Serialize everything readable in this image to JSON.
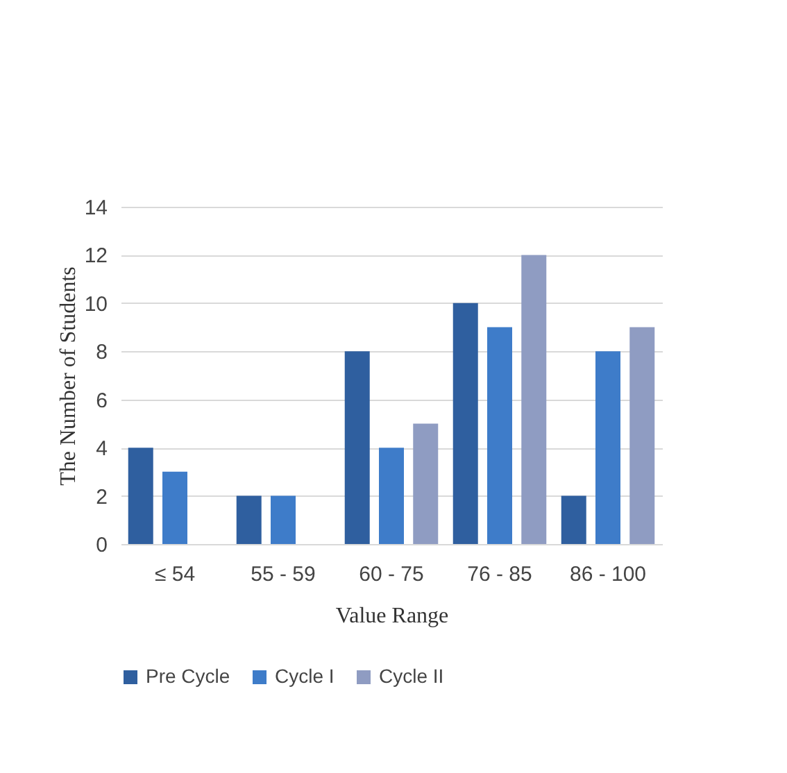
{
  "chart_data": {
    "type": "bar",
    "xlabel": "Value Range",
    "ylabel": "The Number of Students",
    "categories": [
      "≤ 54",
      "55 - 59",
      "60 - 75",
      "76 - 85",
      "86 - 100"
    ],
    "series": [
      {
        "name": "Pre Cycle",
        "color": "#2f5f9f",
        "values": [
          4,
          2,
          8,
          10,
          2
        ]
      },
      {
        "name": "Cycle I",
        "color": "#3e7cc9",
        "values": [
          3,
          2,
          4,
          9,
          8
        ]
      },
      {
        "name": "Cycle II",
        "color": "#8f9cc2",
        "values": [
          null,
          null,
          5,
          12,
          9
        ]
      }
    ],
    "ylim": [
      0,
      14
    ],
    "yticks": [
      0,
      2,
      4,
      6,
      8,
      10,
      12,
      14
    ],
    "grid": "y",
    "legend": "bottom"
  }
}
